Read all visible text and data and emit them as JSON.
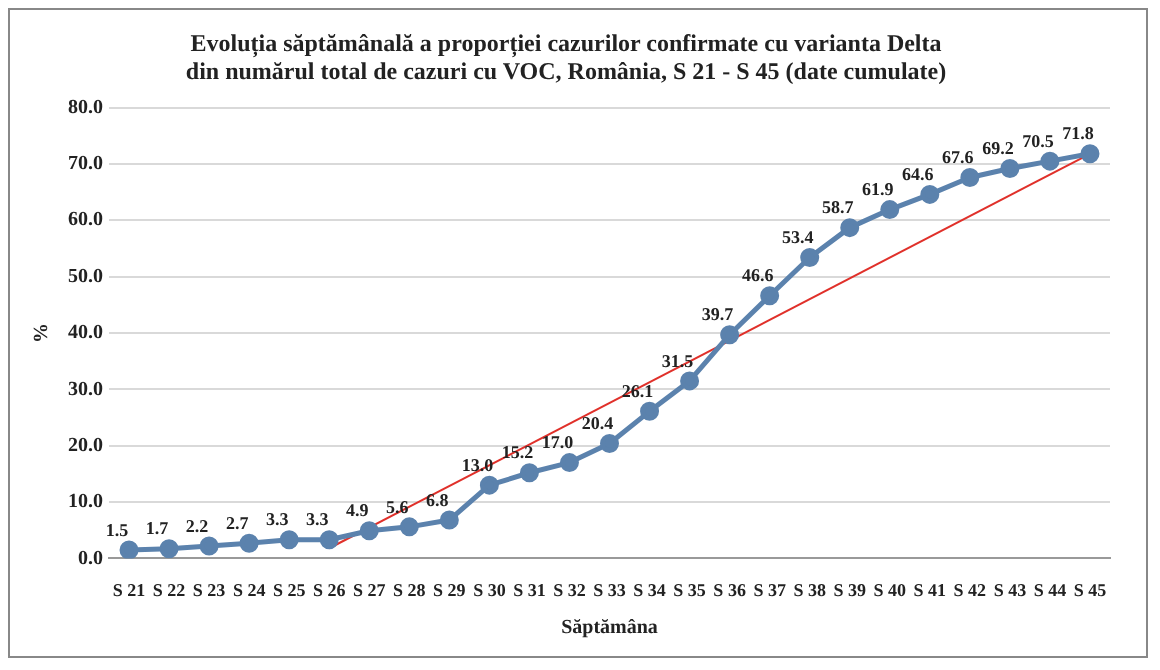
{
  "chart_data": {
    "type": "line",
    "title": "Evoluția săptămânală a proporției cazurilor confirmate cu varianta Delta\ndin numărul total de cazuri cu VOC, România, S 21 - S 45 (date cumulate)",
    "xlabel": "Săptămâna",
    "ylabel": "%",
    "categories": [
      "S 21",
      "S 22",
      "S 23",
      "S 24",
      "S 25",
      "S 26",
      "S 27",
      "S 28",
      "S 29",
      "S 30",
      "S 31",
      "S 32",
      "S 33",
      "S 34",
      "S 35",
      "S 36",
      "S 37",
      "S 38",
      "S 39",
      "S 40",
      "S 41",
      "S 42",
      "S 43",
      "S 44",
      "S 45"
    ],
    "series": [
      {
        "color": "#5b82ad",
        "values": [
          1.5,
          1.7,
          2.2,
          2.7,
          3.3,
          3.3,
          4.9,
          5.6,
          6.8,
          13.0,
          15.2,
          17.0,
          20.4,
          26.1,
          31.5,
          39.7,
          46.6,
          53.4,
          58.7,
          61.9,
          64.6,
          67.6,
          69.2,
          70.5,
          71.8
        ],
        "value_labels": [
          "1.5",
          "1.7",
          "2.2",
          "2.7",
          "3.3",
          "3.3",
          "4.9",
          "5.6",
          "6.8",
          "13.0",
          "15.2",
          "17.0",
          "20.4",
          "26.1",
          "31.5",
          "39.7",
          "46.6",
          "53.4",
          "58.7",
          "61.9",
          "64.6",
          "67.6",
          "69.2",
          "70.5",
          "71.8"
        ],
        "marker": "circle"
      },
      {
        "type": "line",
        "color": "#e0302a",
        "x": [
          "S 26",
          "S 45"
        ],
        "values": [
          1.8,
          71.8
        ],
        "marker": "none"
      }
    ],
    "ylim": [
      0,
      80
    ],
    "yticks": [
      {
        "value": 0,
        "label": "0.0"
      },
      {
        "value": 10,
        "label": "10.0"
      },
      {
        "value": 20,
        "label": "20.0"
      },
      {
        "value": 30,
        "label": "30.0"
      },
      {
        "value": 40,
        "label": "40.0"
      },
      {
        "value": 50,
        "label": "50.0"
      },
      {
        "value": 60,
        "label": "60.0"
      },
      {
        "value": 70,
        "label": "70.0"
      },
      {
        "value": 80,
        "label": "80.0"
      }
    ],
    "grid": "y",
    "legend": false
  }
}
